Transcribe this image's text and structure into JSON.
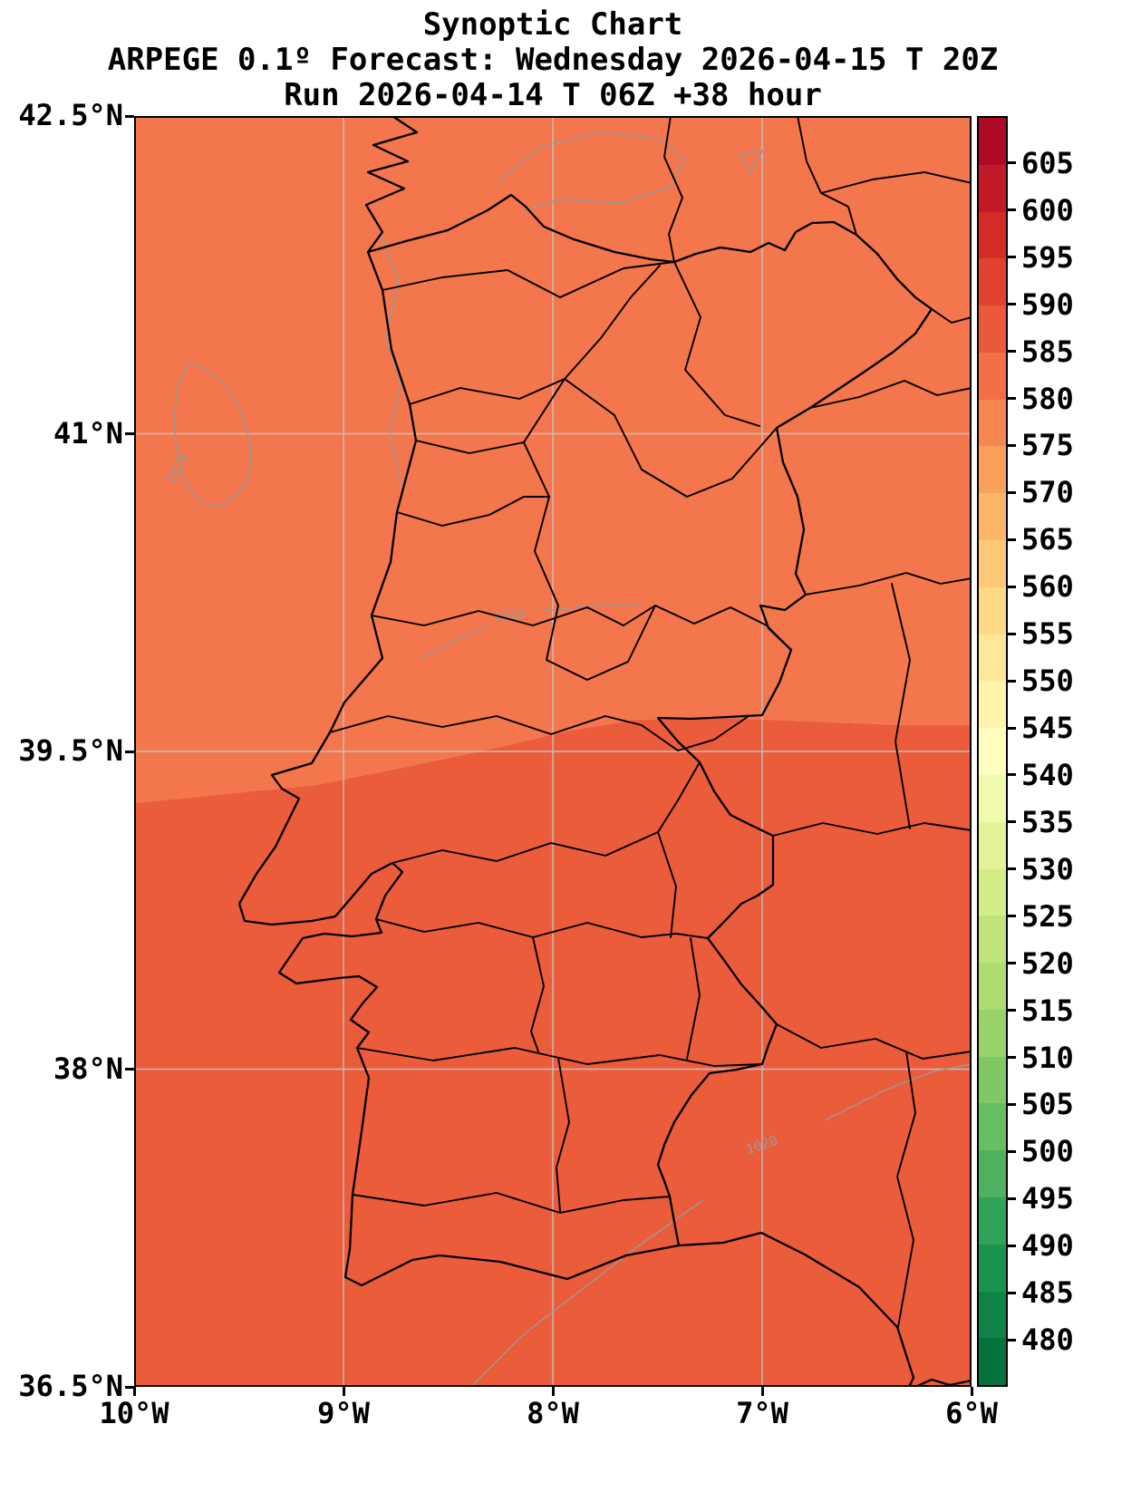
{
  "header": {
    "title": "Synoptic Chart",
    "subtitle": "ARPEGE 0.1º Forecast: Wednesday 2026-04-15 T 20Z",
    "run_line": "Run 2026-04-14 T 06Z +38 hour"
  },
  "axes": {
    "x_ticks": [
      "10°W",
      "9°W",
      "8°W",
      "7°W",
      "6°W"
    ],
    "y_ticks": [
      "42.5°N",
      "41°N",
      "39.5°N",
      "38°N",
      "36.5°N"
    ]
  },
  "colorbar": {
    "ticks": [
      "605",
      "600",
      "595",
      "590",
      "585",
      "580",
      "575",
      "570",
      "565",
      "560",
      "555",
      "550",
      "545",
      "540",
      "535",
      "530",
      "525",
      "520",
      "515",
      "510",
      "505",
      "500",
      "495",
      "490",
      "485",
      "480"
    ],
    "value_min": 475,
    "value_max": 610,
    "colors_bottom_to_top": [
      "#05713C",
      "#0E8345",
      "#18944E",
      "#31A356",
      "#4DB15D",
      "#68BE63",
      "#80C866",
      "#98D368",
      "#AEDC6F",
      "#C0E47B",
      "#D3ED87",
      "#E3F398",
      "#F1F9AC",
      "#FFFFBF",
      "#FFF4AC",
      "#FEE898",
      "#FEDA86",
      "#FEC877",
      "#FDB567",
      "#FBA05A",
      "#F8874F",
      "#F46F44",
      "#EA593A",
      "#E0422F",
      "#D32C27",
      "#C11B27",
      "#AE0926"
    ]
  },
  "map": {
    "fill_north": "#F3764C",
    "fill_south": "#EB5C3B",
    "gridline_color": "#C4C4C4",
    "boundary_color": "#000000",
    "contour_color": "#9A9A9A",
    "contour_labels": [
      {
        "text": "1024"
      },
      {
        "text": "1024"
      },
      {
        "text": "1020"
      }
    ]
  },
  "chart_data": {
    "type": "heatmap",
    "title": "Synoptic Chart",
    "subtitle": "ARPEGE 0.1º Forecast: Wednesday 2026-04-15 T 20Z",
    "run": "Run 2026-04-14 T 06Z +38 hour",
    "x_ticks": [
      "10°W",
      "9°W",
      "8°W",
      "7°W",
      "6°W"
    ],
    "y_ticks": [
      "42.5°N",
      "41°N",
      "39.5°N",
      "38°N",
      "36.5°N"
    ],
    "x_range": [
      "10°W",
      "6°W"
    ],
    "y_range": [
      "36.5°N",
      "42.5°N"
    ],
    "colorbar_ticks": [
      605,
      600,
      595,
      590,
      585,
      580,
      575,
      570,
      565,
      560,
      555,
      550,
      545,
      540,
      535,
      530,
      525,
      520,
      515,
      510,
      505,
      500,
      495,
      490,
      485,
      480
    ],
    "colorbar_range": [
      475,
      610
    ],
    "filled_bands": [
      {
        "region": "north of ~39.4°N (upper part of map incl. Atlantic)",
        "value_band": "575-580"
      },
      {
        "region": "south of ~39.4°N (lower part of map)",
        "value_band": "580-585"
      }
    ],
    "contour_lines": [
      {
        "value": 1024,
        "location": "small closed cell in Atlantic near 9.8°W, 40.5°N"
      },
      {
        "value": 1024,
        "location": "across central Portugal near 8.2°W, 39.7°N"
      },
      {
        "value": 1020,
        "location": "diagonal across southeast corner near 6.9°W, 37.6°N"
      }
    ],
    "grid": true,
    "legend_position": "right-colorbar"
  }
}
